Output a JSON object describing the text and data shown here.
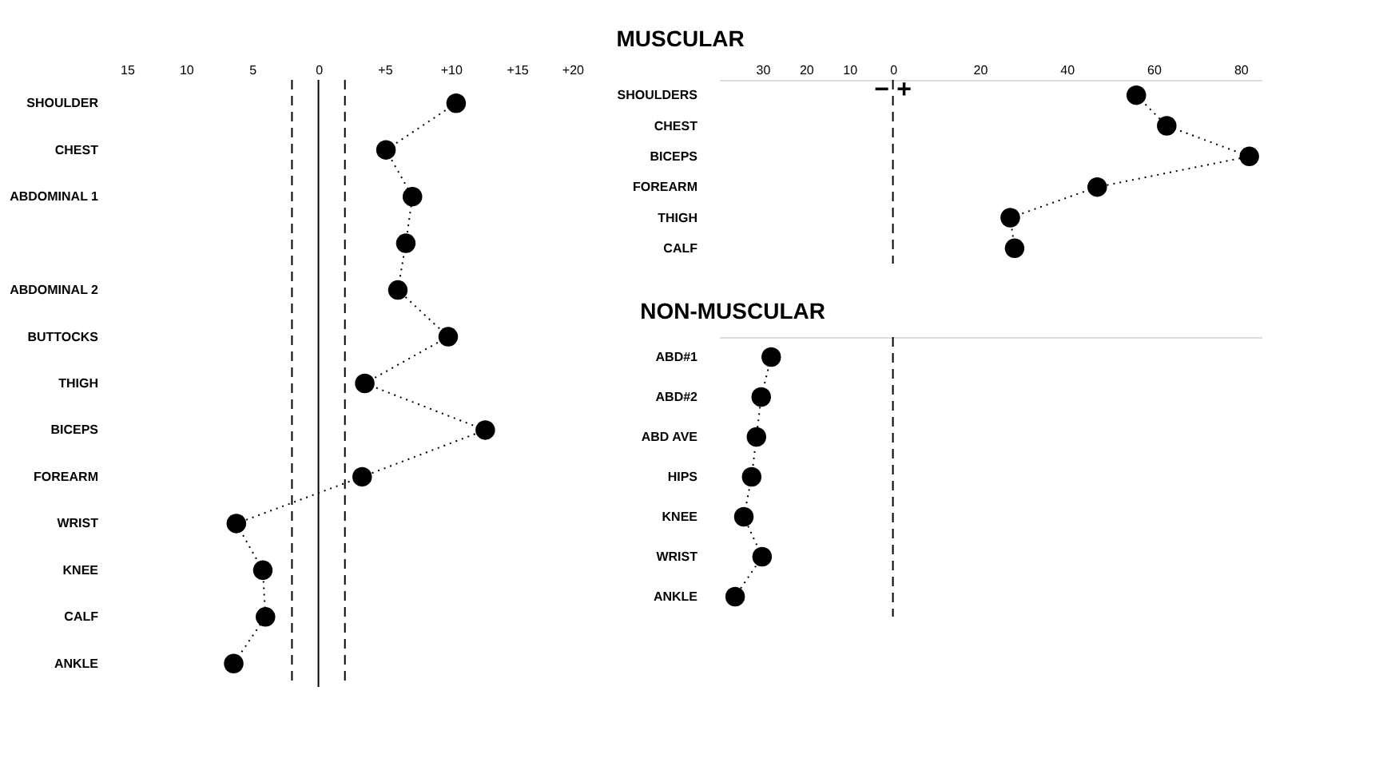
{
  "chart_data": [
    {
      "type": "line",
      "orientation": "horizontal",
      "marker": "circle",
      "line_style": "dotted",
      "categories": [
        "SHOULDER",
        "CHEST",
        "ABDOMINAL 1",
        null,
        "ABDOMINAL 2",
        "BUTTOCKS",
        "THIGH",
        "BICEPS",
        "FOREARM",
        "WRIST",
        "KNEE",
        "CALF",
        "ANKLE"
      ],
      "series": [
        {
          "color": "#000000",
          "values": [
            10.4,
            5.1,
            7.1,
            6.6,
            6.0,
            9.8,
            3.5,
            12.6,
            3.3,
            -6.2,
            -4.2,
            -4.0,
            -6.4
          ]
        }
      ],
      "xlim": [
        -15,
        20
      ],
      "xticks": [
        {
          "value": -15,
          "label": "15"
        },
        {
          "value": -10,
          "label": "10"
        },
        {
          "value": -5,
          "label": "5"
        },
        0,
        {
          "value": 5,
          "label": "+5"
        },
        {
          "value": 10,
          "label": "+10"
        },
        {
          "value": 15,
          "label": "+15"
        },
        {
          "value": 20,
          "label": "+20"
        }
      ],
      "ref_lines": [
        {
          "axis": "x",
          "value": -2,
          "line_style": "dashed",
          "color": "#000000"
        },
        {
          "axis": "x",
          "value": 0,
          "line_style": "solid",
          "color": "#000000"
        },
        {
          "axis": "x",
          "value": 2,
          "line_style": "dashed",
          "color": "#000000"
        }
      ]
    },
    {
      "type": "line",
      "orientation": "horizontal",
      "marker": "circle",
      "line_style": "dotted",
      "title": "MUSCULAR",
      "annotations": [
        "−",
        "+"
      ],
      "categories": [
        "SHOULDERS",
        "CHEST",
        "BICEPS",
        "FOREARM",
        "THIGH",
        "CALF"
      ],
      "series": [
        {
          "color": "#000000",
          "values": [
            56,
            63,
            82,
            47,
            27,
            28
          ]
        }
      ],
      "xlim": [
        -40,
        85
      ],
      "xticks": [
        {
          "value": -30,
          "label": "30"
        },
        {
          "value": -20,
          "label": "20"
        },
        {
          "value": -10,
          "label": "10"
        },
        0,
        20,
        40,
        60,
        80
      ],
      "ref_lines": [
        {
          "axis": "x",
          "value": 0,
          "line_style": "dashed",
          "color": "#000000"
        }
      ]
    },
    {
      "type": "line",
      "orientation": "horizontal",
      "marker": "circle",
      "line_style": "dotted",
      "title": "NON-MUSCULAR",
      "tick_labels": "y",
      "categories": [
        "ABD#1",
        "ABD#2",
        "ABD AVE",
        "HIPS",
        "KNEE",
        "WRIST",
        "ANKLE"
      ],
      "series": [
        {
          "color": "#000000",
          "values": [
            -28,
            -30.3,
            -31.4,
            -32.5,
            -34.3,
            -30.1,
            -36.3
          ]
        }
      ],
      "xlim": [
        -40,
        85
      ],
      "ref_lines": [
        {
          "axis": "x",
          "value": 0,
          "line_style": "dashed",
          "color": "#000000"
        }
      ]
    }
  ]
}
